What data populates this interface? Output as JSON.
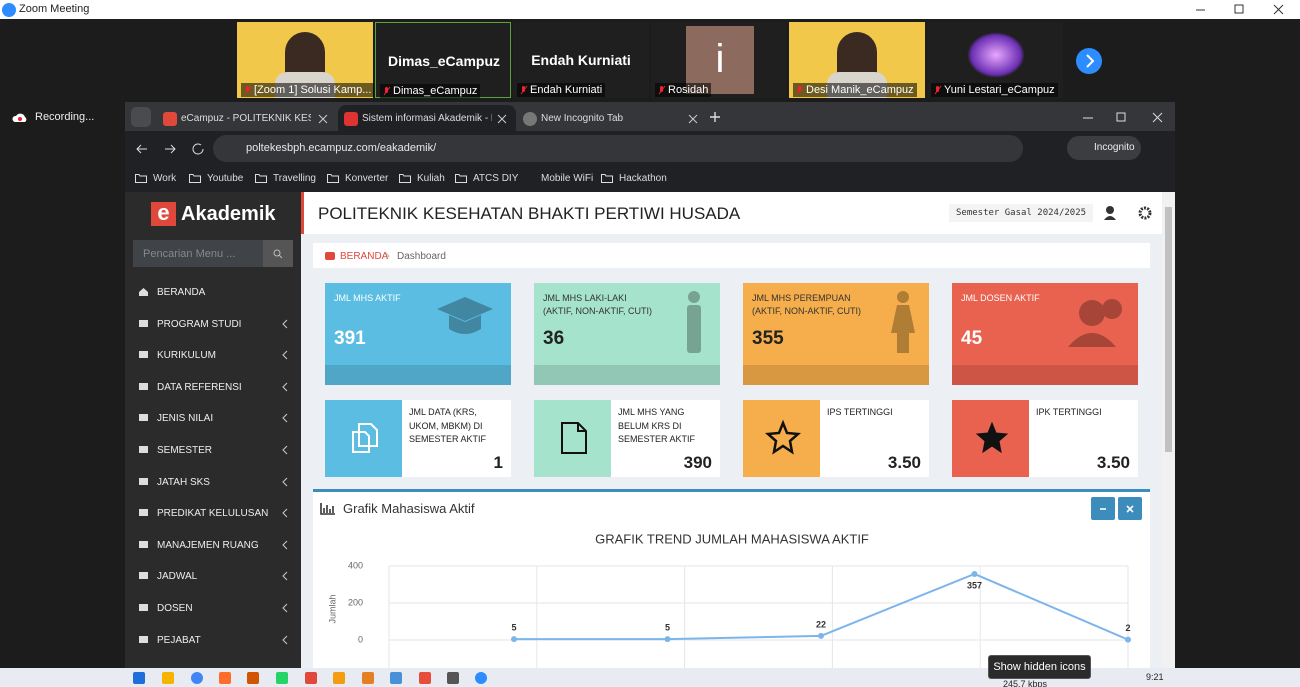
{
  "window": {
    "title": "Zoom Meeting"
  },
  "participants": [
    {
      "name": "[Zoom 1] Solusi Kamp..."
    },
    {
      "name": "Dimas_eCampuz",
      "display": "Dimas_eCampuz"
    },
    {
      "name": "Endah Kurniati",
      "display": "Endah Kurniati"
    },
    {
      "name": "Rosidah",
      "avatar": "i"
    },
    {
      "name": "Desi Manik_eCampuz"
    },
    {
      "name": "Yuni Lestari_eCampuz"
    }
  ],
  "recording": "Recording...",
  "browser": {
    "tabs": [
      "eCampuz - POLITEKNIK KESEHA",
      "Sistem informasi Akademik - BA",
      "New Incognito Tab"
    ],
    "url": "poltekesbph.ecampuz.com/eakademik/",
    "mode": "Incognito",
    "bookmarks": [
      "Work",
      "Youtube",
      "Travelling",
      "Konverter",
      "Kuliah",
      "ATCS DIY",
      "Mobile WiFi",
      "Hackathon"
    ]
  },
  "app": {
    "logo_letter": "e",
    "logo": "Akademik",
    "search": "Pencarian Menu ...",
    "menu": [
      "BERANDA",
      "PROGRAM STUDI",
      "KURIKULUM",
      "DATA REFERENSI",
      "JENIS NILAI",
      "SEMESTER",
      "JATAH SKS",
      "PREDIKAT KELULUSAN",
      "MANAJEMEN RUANG",
      "JADWAL",
      "DOSEN",
      "PEJABAT"
    ],
    "header": "POLITEKNIK KESEHATAN BHAKTI PERTIWI HUSADA",
    "semester": "Semester Gasal 2024/2025",
    "breadcrumb": [
      "BERANDA",
      "Dashboard"
    ],
    "stats": [
      {
        "label": "JML MHS AKTIF",
        "value": 391,
        "color": "#5bbde2"
      },
      {
        "label": "JML MHS LAKI-LAKI",
        "sub": "(AKTIF, NON-AKTIF, CUTI)",
        "value": 36,
        "color": "#a6e3cd"
      },
      {
        "label": "JML MHS PEREMPUAN",
        "sub": "(AKTIF, NON-AKTIF, CUTI)",
        "value": 355,
        "color": "#f5ae4b"
      },
      {
        "label": "JML DOSEN AKTIF",
        "value": 45,
        "color": "#e9614f"
      }
    ],
    "info": [
      {
        "label": "JML DATA (KRS, UKOM, MBKM) DI SEMESTER AKTIF",
        "value": 1,
        "color": "#5bbde2"
      },
      {
        "label": "JML MHS YANG BELUM KRS DI SEMESTER AKTIF",
        "value": 390,
        "color": "#a6e3cd"
      },
      {
        "label": "IPS TERTINGGI",
        "value": 3.5,
        "value_label": "3.50",
        "color": "#f5ae4b"
      },
      {
        "label": "IPK TERTINGGI",
        "value": 3.5,
        "value_label": "3.50",
        "color": "#e9614f"
      }
    ],
    "panel_title": "Grafik Mahasiswa Aktif",
    "chart": {
      "type": "line",
      "title": "GRAFIK TREND JUMLAH MAHASISWA AKTIF",
      "y_label": "Jumlah",
      "categories": [
        null,
        null,
        null,
        null,
        null
      ],
      "values": [
        5,
        5,
        22,
        357,
        2
      ],
      "color": "#7cb5ec",
      "ylim": [
        0,
        400
      ],
      "yticks": [
        0,
        200,
        400
      ],
      "grid": true
    }
  },
  "tooltip": "Show hidden icons",
  "tray": {
    "speed": "245.7 kbps",
    "time": "9:21"
  }
}
